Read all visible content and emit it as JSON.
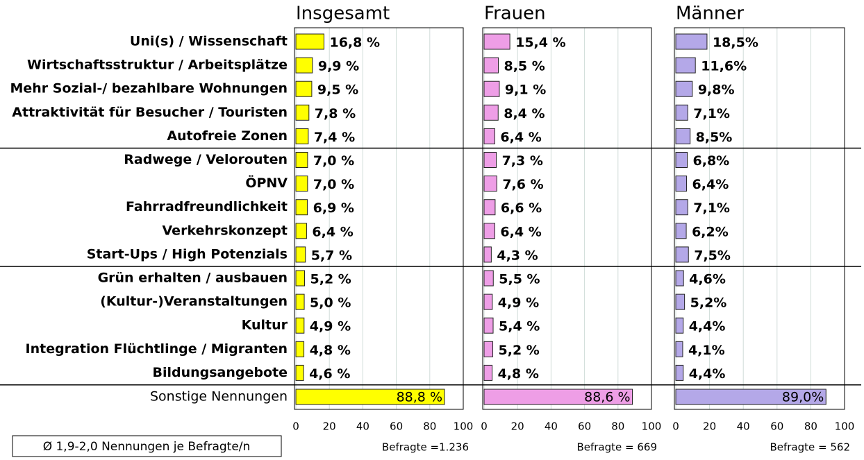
{
  "chart_data": {
    "type": "bar",
    "orientation": "horizontal",
    "categories": [
      "Uni(s) / Wissenschaft",
      "Wirtschaftsstruktur / Arbeitsplätze",
      "Mehr Sozial-/ bezahlbare Wohnungen",
      "Attraktivität für Besucher / Touristen",
      "Autofreie Zonen",
      "Radwege / Velorouten",
      "ÖPNV",
      "Fahrradfreundlichkeit",
      "Verkehrskonzept",
      "Start-Ups / High Potenzials",
      "Grün erhalten / ausbauen",
      "(Kultur-)Veranstaltungen",
      "Kultur",
      "Integration Flüchtlinge / Migranten",
      "Bildungsangebote",
      "Sonstige Nennungen"
    ],
    "series": [
      {
        "name": "Insgesamt",
        "color": "#ffff00",
        "respondents": "Befragte =1.236",
        "values": [
          16.8,
          9.9,
          9.5,
          7.8,
          7.4,
          7.0,
          7.0,
          6.9,
          6.4,
          5.7,
          5.2,
          5.0,
          4.9,
          4.8,
          4.6,
          88.8
        ],
        "value_labels": [
          "16,8 %",
          "9,9 %",
          "9,5 %",
          "7,8 %",
          "7,4 %",
          "7,0 %",
          "7,0 %",
          "6,9 %",
          "6,4 %",
          "5,7 %",
          "5,2 %",
          "5,0 %",
          "4,9 %",
          "4,8 %",
          "4,6 %",
          "88,8 %"
        ]
      },
      {
        "name": "Frauen",
        "color": "#ee9ee6",
        "respondents": "Befragte = 669",
        "values": [
          15.4,
          8.5,
          9.1,
          8.4,
          6.4,
          7.3,
          7.6,
          6.6,
          6.4,
          4.3,
          5.5,
          4.9,
          5.4,
          5.2,
          4.8,
          88.6
        ],
        "value_labels": [
          "15,4 %",
          "8,5 %",
          "9,1 %",
          "8,4 %",
          "6,4 %",
          "7,3 %",
          "7,6 %",
          "6,6 %",
          "6,4 %",
          "4,3 %",
          "5,5 %",
          "4,9 %",
          "5,4 %",
          "5,2 %",
          "4,8 %",
          "88,6 %"
        ]
      },
      {
        "name": "Männer",
        "color": "#b4a8e8",
        "respondents": "Befragte = 562",
        "values": [
          18.5,
          11.6,
          9.8,
          7.1,
          8.5,
          6.8,
          6.4,
          7.1,
          6.2,
          7.5,
          4.6,
          5.2,
          4.4,
          4.1,
          4.4,
          89.0
        ],
        "value_labels": [
          "18,5%",
          "11,6%",
          "9,8%",
          "7,1%",
          "8,5%",
          "6,8%",
          "6,4%",
          "7,1%",
          "6,2%",
          "7,5%",
          "4,6%",
          "5,2%",
          "4,4%",
          "4,1%",
          "4,4%",
          "89,0%"
        ]
      }
    ],
    "xlim": [
      0,
      100
    ],
    "xticks": [
      0,
      20,
      40,
      60,
      80,
      100
    ],
    "grid": true,
    "footnote": "Ø 1,9-2,0 Nennungen je Befragte/n"
  }
}
